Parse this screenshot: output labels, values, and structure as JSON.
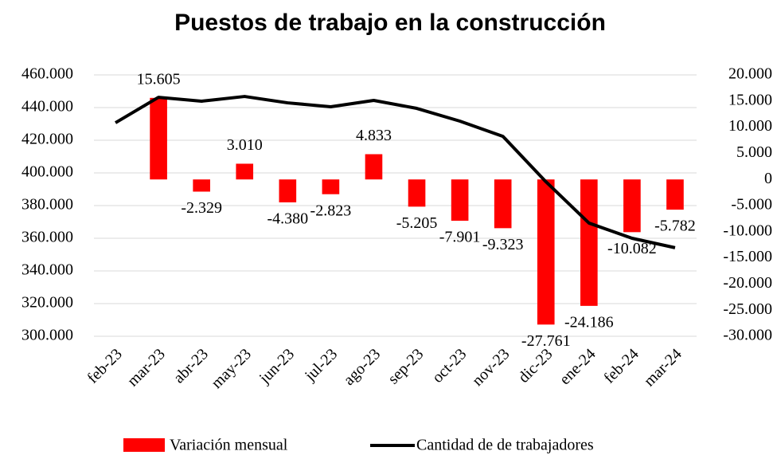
{
  "chart_data": {
    "type": "bar-line",
    "title": "Puestos de trabajo en la construcción",
    "categories": [
      "feb-23",
      "mar-23",
      "abr-23",
      "may-23",
      "jun-23",
      "jul-23",
      "ago-23",
      "sep-23",
      "oct-23",
      "nov-23",
      "dic-23",
      "ene-24",
      "feb-24",
      "mar-24"
    ],
    "series": [
      {
        "name": "Variación mensual",
        "type": "bar",
        "axis": "y2",
        "color": "#ff0000",
        "values": [
          null,
          15605,
          -2329,
          3010,
          -4380,
          -2823,
          4833,
          -5205,
          -7901,
          -9323,
          -27761,
          -24186,
          -10082,
          -5782
        ],
        "value_labels": [
          null,
          "15.605",
          "-2.329",
          "3.010",
          "-4.380",
          "-2.823",
          "4.833",
          "-5.205",
          "-7.901",
          "-9.323",
          "-27.761",
          "-24.186",
          "-10.082",
          "-5.782"
        ]
      },
      {
        "name": "Cantidad de de trabajadores",
        "type": "line",
        "axis": "y",
        "color": "#000000",
        "values": [
          430700,
          446300,
          443900,
          446800,
          442900,
          440500,
          444400,
          439500,
          431700,
          422400,
          394600,
          369300,
          360000,
          354200
        ]
      }
    ],
    "ylim": [
      300000,
      460000
    ],
    "yticks": [
      {
        "value": 300000,
        "label": "300.000"
      },
      {
        "value": 320000,
        "label": "320.000"
      },
      {
        "value": 340000,
        "label": "340.000"
      },
      {
        "value": 360000,
        "label": "360.000"
      },
      {
        "value": 380000,
        "label": "380.000"
      },
      {
        "value": 400000,
        "label": "400.000"
      },
      {
        "value": 420000,
        "label": "420.000"
      },
      {
        "value": 440000,
        "label": "440.000"
      },
      {
        "value": 460000,
        "label": "460.000"
      }
    ],
    "y2lim": [
      -30000,
      20000
    ],
    "y2ticks": [
      {
        "value": -30000,
        "label": "-30.000"
      },
      {
        "value": -25000,
        "label": "-25.000"
      },
      {
        "value": -20000,
        "label": "-20.000"
      },
      {
        "value": -15000,
        "label": "-15.000"
      },
      {
        "value": -10000,
        "label": "-10.000"
      },
      {
        "value": -5000,
        "label": "-5.000"
      },
      0,
      {
        "value": 5000,
        "label": "5.000"
      },
      {
        "value": 10000,
        "label": "10.000"
      },
      {
        "value": 15000,
        "label": "15.000"
      },
      {
        "value": 20000,
        "label": "20.000"
      }
    ],
    "grid": true
  }
}
